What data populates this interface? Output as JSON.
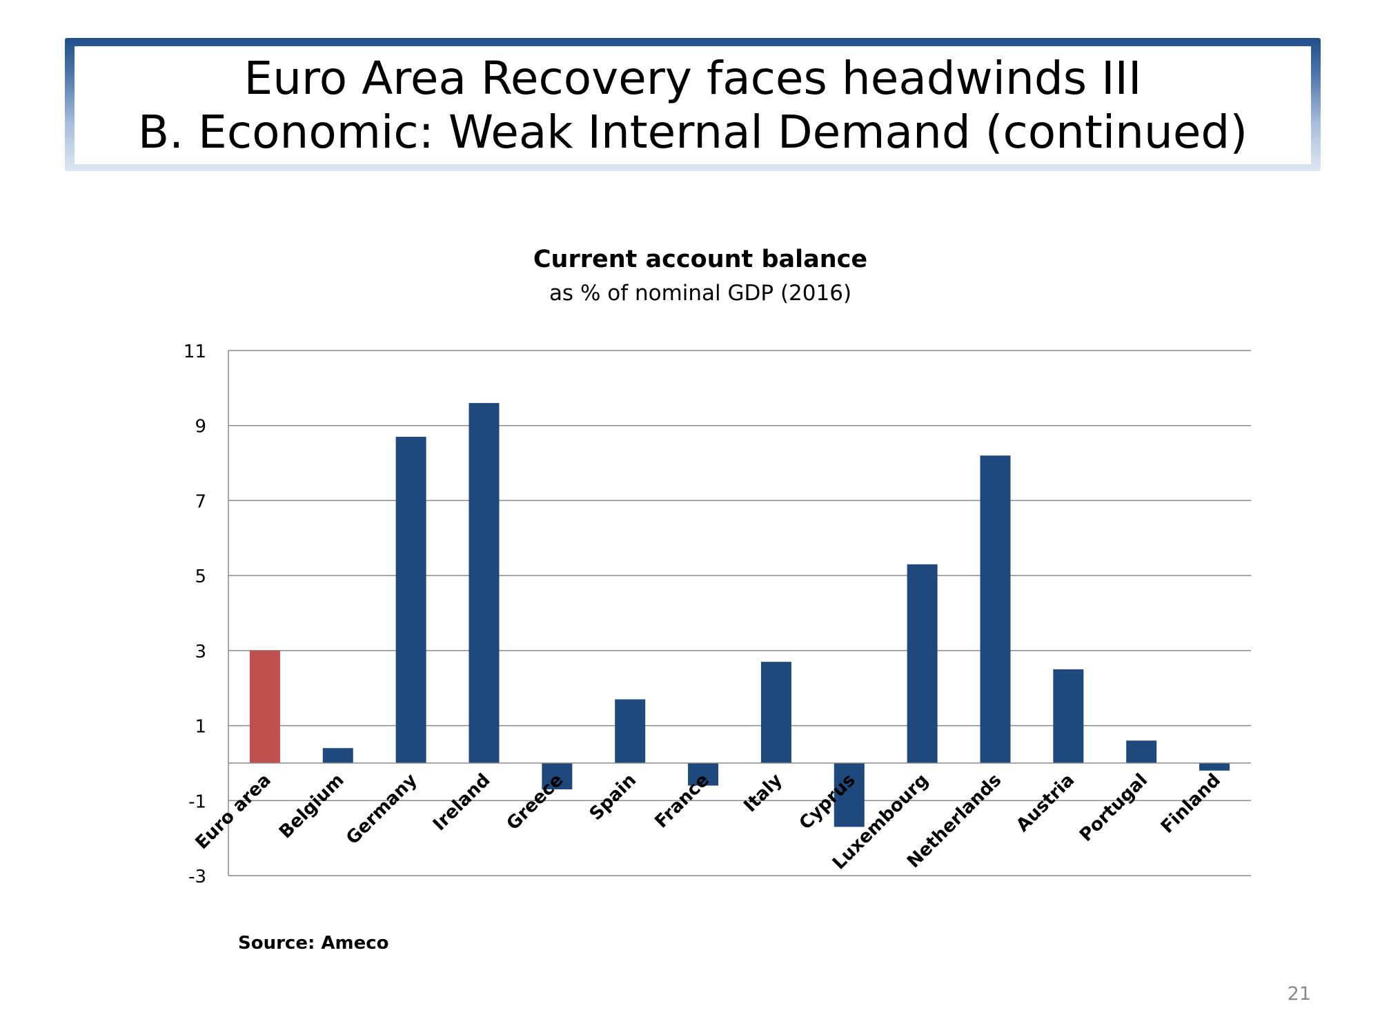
{
  "slide": {
    "title_line1": "Euro Area Recovery faces headwinds III",
    "title_line2": "B. Economic: Weak Internal Demand (continued)",
    "source": "Source: Ameco",
    "page_number": "21"
  },
  "colors": {
    "bar_default": "#1f497d",
    "bar_highlight": "#c0504d",
    "gridline": "#898989",
    "title_border": "#1f4e89"
  },
  "chart_data": {
    "type": "bar",
    "title": "Current account balance",
    "subtitle": "as % of nominal GDP (2016)",
    "xlabel": "",
    "ylabel": "",
    "categories": [
      "Euro area",
      "Belgium",
      "Germany",
      "Ireland",
      "Greece",
      "Spain",
      "France",
      "Italy",
      "Cyprus",
      "Luxembourg",
      "Netherlands",
      "Austria",
      "Portugal",
      "Finland"
    ],
    "values": [
      3.0,
      0.4,
      8.7,
      9.6,
      -0.7,
      1.7,
      -0.6,
      2.7,
      -1.7,
      5.3,
      8.2,
      2.5,
      0.6,
      -0.2
    ],
    "highlight": [
      "Euro area"
    ],
    "ylim": [
      -3,
      11
    ],
    "yticks": [
      -3,
      -1,
      1,
      3,
      5,
      7,
      9,
      11
    ],
    "grid": true,
    "legend": "none"
  }
}
